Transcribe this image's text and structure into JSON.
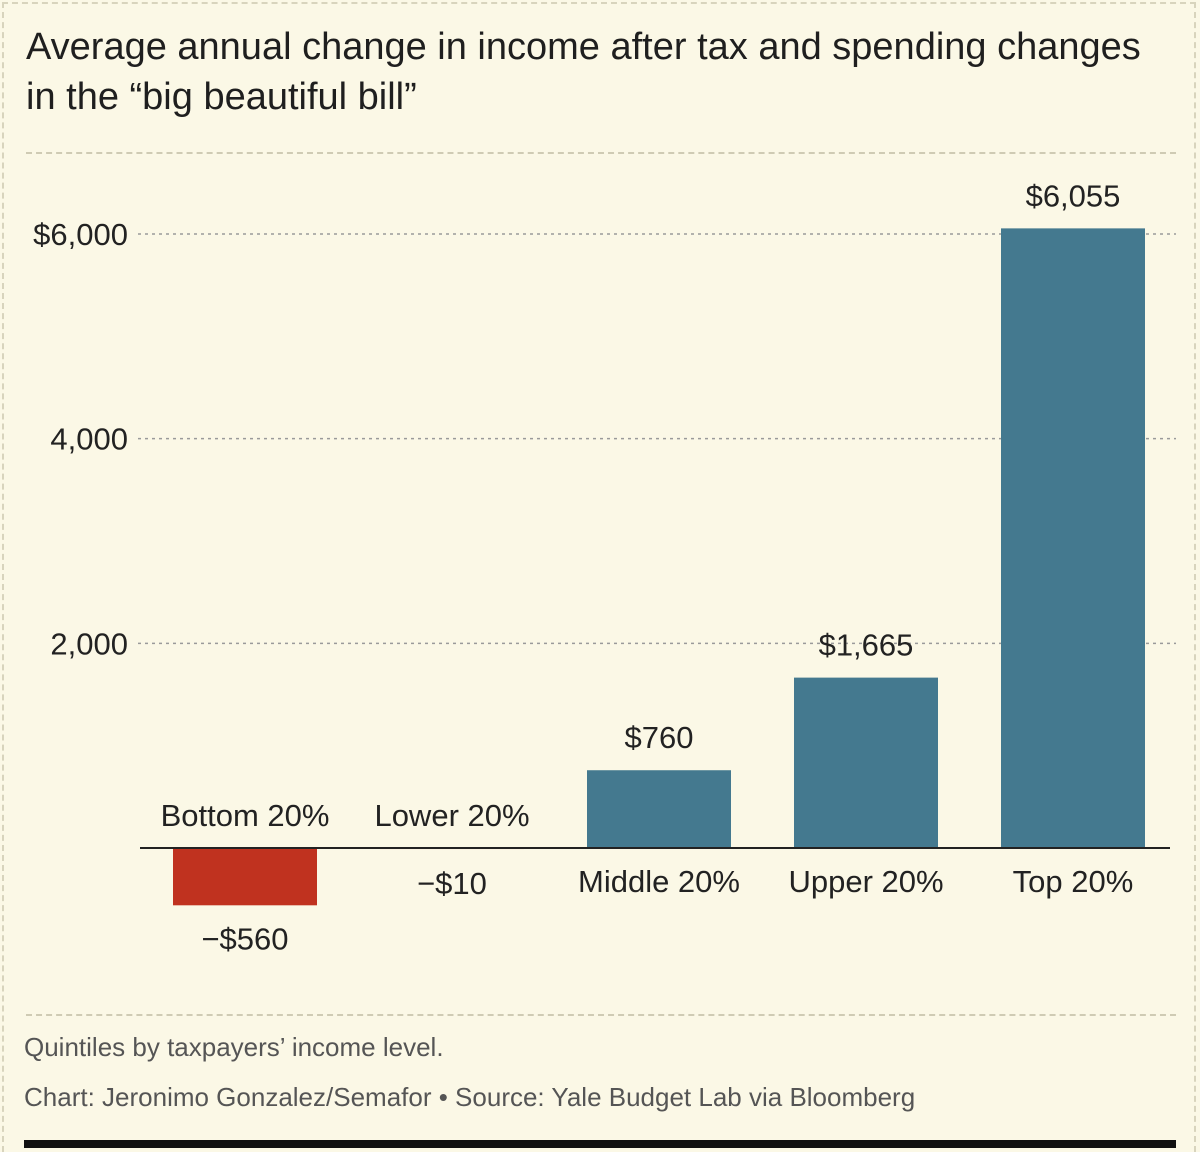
{
  "title": "Average annual change in income after tax and spending changes in the “big beautiful bill”",
  "notes": {
    "subtitle": "Quintiles by taxpayers’ income level.",
    "credit": "Chart: Jeronimo Gonzalez/Semafor • Source: Yale Budget Lab via Bloomberg"
  },
  "colors": {
    "positive": "#44798f",
    "negative": "#c0321f",
    "grid": "#9a9a9a",
    "text": "#222222"
  },
  "chart_data": {
    "type": "bar",
    "categories": [
      "Bottom 20%",
      "Lower 20%",
      "Middle 20%",
      "Upper 20%",
      "Top 20%"
    ],
    "values": [
      -560,
      -10,
      760,
      1665,
      6055
    ],
    "value_labels": [
      "−$560",
      "−$10",
      "$760",
      "$1,665",
      "$6,055"
    ],
    "yticks": [
      {
        "value": 2000,
        "label": "2,000"
      },
      {
        "value": 4000,
        "label": "4,000"
      },
      {
        "value": 6000,
        "label": "$6,000"
      }
    ],
    "ylim": [
      -700,
      6300
    ],
    "grid": true,
    "xlabel": "",
    "ylabel": ""
  }
}
